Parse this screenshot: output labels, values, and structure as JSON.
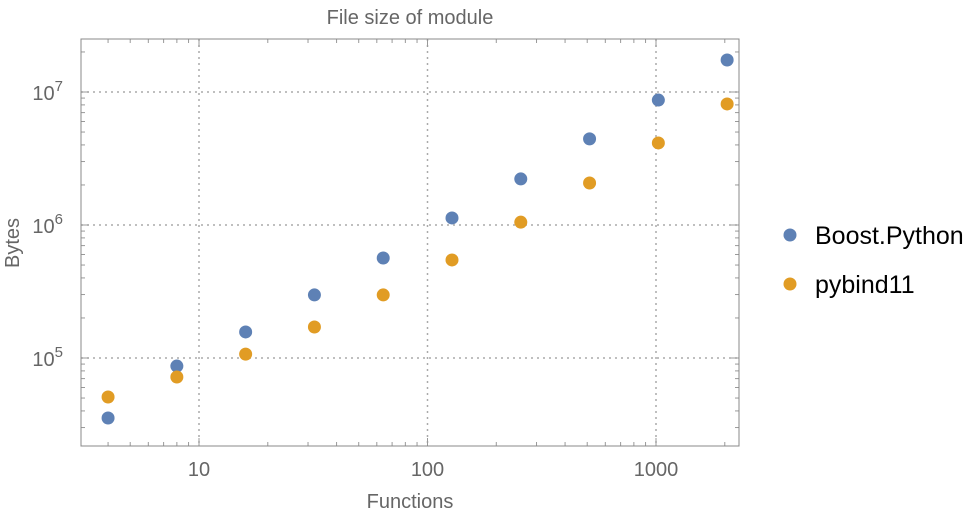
{
  "chart_data": {
    "type": "scatter",
    "title": "File size of module",
    "xlabel": "Functions",
    "ylabel": "Bytes",
    "x_scale": "log",
    "y_scale": "log",
    "xlim": [
      3,
      2330
    ],
    "ylim": [
      21400,
      25500000
    ],
    "grid": true,
    "legend_position": "right",
    "x_ticks": [
      {
        "value": 10,
        "label": "10"
      },
      {
        "value": 100,
        "label": "100"
      },
      {
        "value": 1000,
        "label": "1000"
      }
    ],
    "y_ticks": [
      {
        "value": 100000,
        "base": "10",
        "exp": "5"
      },
      {
        "value": 1000000,
        "base": "10",
        "exp": "6"
      },
      {
        "value": 10000000,
        "base": "10",
        "exp": "7"
      }
    ],
    "x": [
      4,
      8,
      16,
      32,
      64,
      128,
      256,
      512,
      1024,
      2048
    ],
    "series": [
      {
        "name": "Boost.Python",
        "color": "#5e81b5",
        "values": [
          35400,
          87000,
          157000,
          298000,
          565000,
          1130000,
          2220000,
          4440000,
          8700000,
          17400000
        ]
      },
      {
        "name": "pybind11",
        "color": "#e19c24",
        "values": [
          50900,
          72000,
          107000,
          171000,
          298000,
          546000,
          1050000,
          2070000,
          4140000,
          8130000
        ]
      }
    ]
  }
}
